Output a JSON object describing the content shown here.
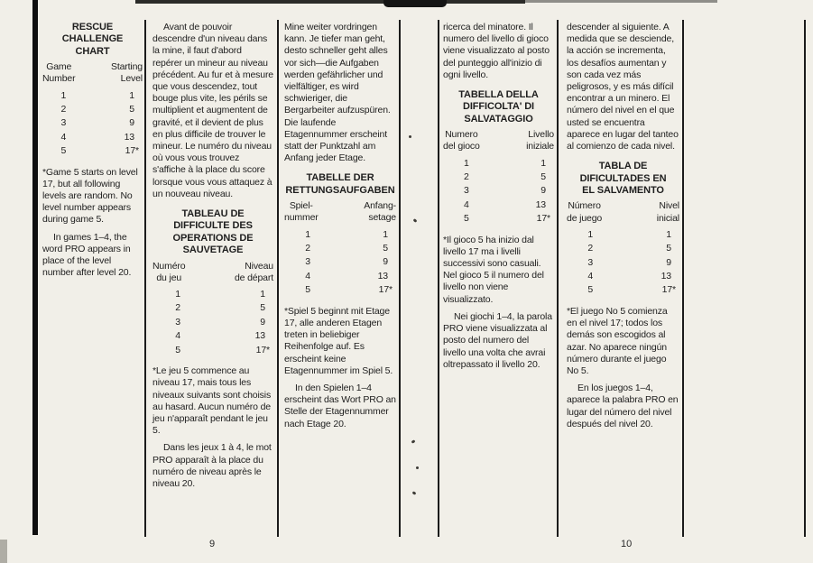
{
  "paper_color": "#f1efe8",
  "ink_color": "#1e1e1e",
  "pages": [
    {
      "number": "9",
      "columns": [
        {
          "id": "english",
          "blocks": [
            {
              "type": "title",
              "text": "RESCUE CHALLENGE\nCHART"
            },
            {
              "type": "table",
              "left_header": [
                "Game",
                "Number"
              ],
              "right_header": [
                "Starting",
                "Level"
              ],
              "rows": [
                [
                  "1",
                  "1"
                ],
                [
                  "2",
                  "5"
                ],
                [
                  "3",
                  "9"
                ],
                [
                  "4",
                  "13"
                ],
                [
                  "5",
                  "17*"
                ]
              ]
            },
            {
              "type": "footnote",
              "text": "*Game 5 starts on level 17, but all following levels are random. No level number appears during game 5."
            },
            {
              "type": "paragraph",
              "indent": true,
              "text": "In games 1–4, the word PRO appears in place of the level number after level 20."
            }
          ]
        },
        {
          "id": "french",
          "blocks": [
            {
              "type": "paragraph",
              "indent": true,
              "text": "Avant de pouvoir descendre d'un niveau dans la mine, il faut d'abord repérer un mineur au niveau précédent. Au fur et à mesure que vous descendez, tout bouge plus vite, les périls se multiplient et augmentent de gravité, et il devient de plus en plus difficile de trouver le mineur. Le numéro du niveau où vous vous trouvez s'affiche à la place du score lorsque vous vous attaquez à un nouveau niveau."
            },
            {
              "type": "title",
              "text": "TABLEAU DE\nDIFFICULTE DES\nOPERATIONS DE\nSAUVETAGE"
            },
            {
              "type": "table",
              "left_header": [
                "Numéro",
                "du jeu"
              ],
              "right_header": [
                "Niveau",
                "de départ"
              ],
              "rows": [
                [
                  "1",
                  "1"
                ],
                [
                  "2",
                  "5"
                ],
                [
                  "3",
                  "9"
                ],
                [
                  "4",
                  "13"
                ],
                [
                  "5",
                  "17*"
                ]
              ]
            },
            {
              "type": "footnote",
              "text": "*Le jeu 5 commence au niveau 17, mais tous les niveaux suivants sont choisis au hasard. Aucun numéro de jeu n'apparaît pendant le jeu 5."
            },
            {
              "type": "paragraph",
              "indent": true,
              "text": "Dans les jeux 1 à 4, le mot PRO apparaît à la place du numéro de niveau après le niveau 20."
            }
          ]
        },
        {
          "id": "german",
          "blocks": [
            {
              "type": "paragraph",
              "indent": false,
              "text": "Mine weiter vordringen kann. Je tiefer man geht, desto schneller geht alles vor sich—die Aufgaben werden gefährlicher und vielfältiger, es wird schwieriger, die Bergarbeiter aufzuspüren. Die laufende Etagennummer erscheint statt der Punktzahl am Anfang jeder Etage."
            },
            {
              "type": "title",
              "text": "TABELLE DER\nRETTUNGSAUFGABEN"
            },
            {
              "type": "table",
              "left_header": [
                "Spiel-",
                "nummer"
              ],
              "right_header": [
                "Anfang-",
                "setage"
              ],
              "rows": [
                [
                  "1",
                  "1"
                ],
                [
                  "2",
                  "5"
                ],
                [
                  "3",
                  "9"
                ],
                [
                  "4",
                  "13"
                ],
                [
                  "5",
                  "17*"
                ]
              ]
            },
            {
              "type": "footnote",
              "text": "*Spiel 5 beginnt mit Etage 17, alle anderen Etagen treten in beliebiger Reihenfolge auf. Es erscheint keine Etagennummer im Spiel 5."
            },
            {
              "type": "paragraph",
              "indent": true,
              "text": "In den Spielen 1–4 erscheint das Wort PRO an Stelle der Etagennummer nach Etage 20."
            }
          ]
        }
      ]
    },
    {
      "number": "10",
      "columns": [
        {
          "id": "italian",
          "blocks": [
            {
              "type": "paragraph",
              "indent": false,
              "text": "ricerca del minatore. Il numero del livello di gioco viene visualizzato al posto del punteggio all'inizio di ogni livello."
            },
            {
              "type": "title",
              "text": "TABELLA DELLA\nDIFFICOLTA' DI\nSALVATAGGIO"
            },
            {
              "type": "table",
              "left_header": [
                "Numero",
                "del gioco"
              ],
              "right_header": [
                "Livello",
                "iniziale"
              ],
              "rows": [
                [
                  "1",
                  "1"
                ],
                [
                  "2",
                  "5"
                ],
                [
                  "3",
                  "9"
                ],
                [
                  "4",
                  "13"
                ],
                [
                  "5",
                  "17*"
                ]
              ]
            },
            {
              "type": "footnote",
              "text": "*Il gioco 5 ha inizio dal livello 17 ma i livelli successivi sono casuali. Nel gioco 5 il numero del livello non viene visualizzato."
            },
            {
              "type": "paragraph",
              "indent": true,
              "text": "Nei giochi 1–4, la parola PRO viene visualizzata al posto del numero del livello una volta che avrai oltrepassato il livello 20."
            }
          ]
        },
        {
          "id": "spanish",
          "blocks": [
            {
              "type": "paragraph",
              "indent": false,
              "text": "descender al siguiente. A medida que se desciende, la acción se incrementa, los desafíos aumentan y son cada vez más peligrosos, y es más difícil encontrar a un minero. El número del nivel en el que usted se encuentra aparece en lugar del tanteo al comienzo de cada nivel."
            },
            {
              "type": "title",
              "text": "TABLA DE\nDIFICULTADES EN\nEL SALVAMENTO"
            },
            {
              "type": "table",
              "left_header": [
                "Número",
                "de juego"
              ],
              "right_header": [
                "Nivel",
                "inicial"
              ],
              "rows": [
                [
                  "1",
                  "1"
                ],
                [
                  "2",
                  "5"
                ],
                [
                  "3",
                  "9"
                ],
                [
                  "4",
                  "13"
                ],
                [
                  "5",
                  "17*"
                ]
              ]
            },
            {
              "type": "footnote",
              "text": "*El juego No 5 comienza en el nivel 17; todos los demás son escogidos al azar. No aparece ningún número durante el juego No 5."
            },
            {
              "type": "paragraph",
              "indent": true,
              "text": "En los juegos 1–4, aparece la palabra PRO en lugar del número del nivel después del nivel 20."
            }
          ]
        }
      ]
    }
  ]
}
